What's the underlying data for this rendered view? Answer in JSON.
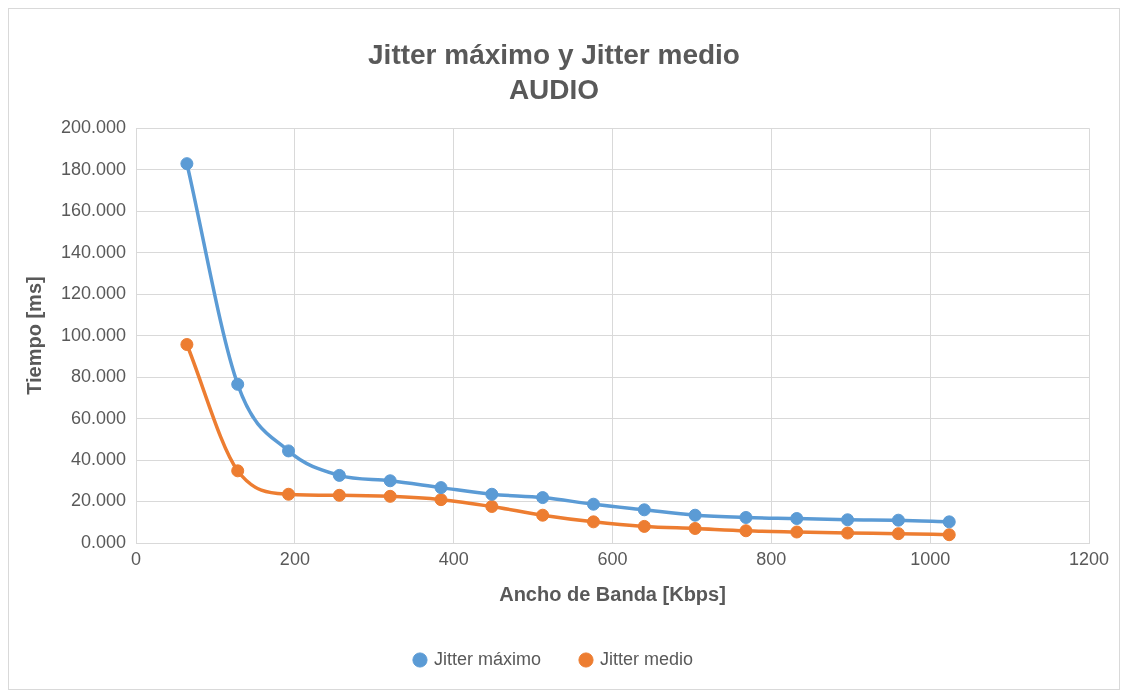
{
  "chart_data": {
    "type": "line",
    "title": "Jitter máximo y Jitter medio",
    "subtitle": "AUDIO",
    "xlabel": "Ancho de Banda [Kbps]",
    "ylabel": "Tiempo [ms]",
    "x": [
      64,
      128,
      192,
      256,
      320,
      384,
      448,
      512,
      576,
      640,
      704,
      768,
      832,
      896,
      960,
      1024
    ],
    "series": [
      {
        "name": "Jitter máximo",
        "color": "#5b9bd5",
        "values": [
          182.9,
          76.5,
          44.4,
          32.6,
          30,
          26.7,
          23.5,
          21.9,
          18.7,
          16,
          13.4,
          12.3,
          11.8,
          11.2,
          11,
          10.2
        ]
      },
      {
        "name": "Jitter medio",
        "color": "#ed7d31",
        "values": [
          95.7,
          34.8,
          23.5,
          23,
          22.5,
          20.9,
          17.6,
          13.4,
          10.2,
          8,
          7,
          5.9,
          5.3,
          4.8,
          4.5,
          4
        ]
      }
    ],
    "xlim": [
      0,
      1200
    ],
    "xticks": [
      0,
      200,
      400,
      600,
      800,
      1000,
      1200
    ],
    "ylim": [
      0,
      200
    ],
    "yticks": [
      {
        "value": 0,
        "label": "0.000"
      },
      {
        "value": 20,
        "label": "20.000"
      },
      {
        "value": 40,
        "label": "40.000"
      },
      {
        "value": 60,
        "label": "60.000"
      },
      {
        "value": 80,
        "label": "80.000"
      },
      {
        "value": 100,
        "label": "100.000"
      },
      {
        "value": 120,
        "label": "120.000"
      },
      {
        "value": 140,
        "label": "140.000"
      },
      {
        "value": 160,
        "label": "160.000"
      },
      {
        "value": 180,
        "label": "180.000"
      },
      {
        "value": 200,
        "label": "200.000"
      }
    ],
    "grid": true,
    "legend": "bottom",
    "marker": "circle",
    "line_style": "solid"
  }
}
